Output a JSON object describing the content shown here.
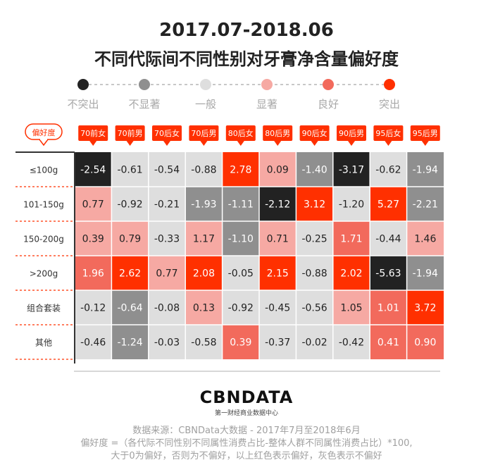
{
  "header": {
    "title_line1": "2017.07-2018.06",
    "title_line2": "不同代际间不同性别对牙膏净含量偏好度"
  },
  "legend": [
    {
      "label": "不突出",
      "color": "#222222"
    },
    {
      "label": "不显著",
      "color": "#8f8f8f"
    },
    {
      "label": "一般",
      "color": "#dedede"
    },
    {
      "label": "显著",
      "color": "#f6a9a3"
    },
    {
      "label": "良好",
      "color": "#f26a5c"
    },
    {
      "label": "突出",
      "color": "#ff3000"
    }
  ],
  "chart_data": {
    "type": "heatmap",
    "corner_label": "偏好度",
    "columns": [
      "70前女",
      "70前男",
      "70后女",
      "70后男",
      "80后女",
      "80后男",
      "90后女",
      "90后男",
      "95后女",
      "95后男"
    ],
    "rows": [
      "≤100g",
      "101-150g",
      "150-200g",
      ">200g",
      "组合套装",
      "其他"
    ],
    "values": [
      [
        -2.54,
        -0.61,
        -0.54,
        -0.88,
        2.78,
        0.09,
        -1.4,
        -3.17,
        -0.62,
        -1.94
      ],
      [
        0.77,
        -0.92,
        -0.21,
        -1.93,
        -1.11,
        -2.12,
        3.12,
        -1.2,
        5.27,
        -2.21
      ],
      [
        0.39,
        0.79,
        -0.33,
        1.17,
        -1.1,
        0.71,
        -0.25,
        1.71,
        -0.44,
        1.46
      ],
      [
        1.96,
        2.62,
        0.77,
        2.08,
        -0.05,
        2.15,
        -0.88,
        2.02,
        -5.63,
        -1.94
      ],
      [
        -0.12,
        -0.64,
        -0.08,
        0.13,
        -0.92,
        -0.45,
        -0.56,
        1.05,
        1.01,
        3.72
      ],
      [
        -0.46,
        -1.24,
        -0.03,
        -0.58,
        0.39,
        -0.37,
        -0.02,
        -0.42,
        0.41,
        0.9
      ]
    ],
    "cell_levels": [
      [
        0,
        2,
        2,
        2,
        5,
        3,
        1,
        0,
        2,
        1
      ],
      [
        3,
        2,
        2,
        1,
        1,
        0,
        5,
        2,
        5,
        1
      ],
      [
        3,
        3,
        2,
        3,
        1,
        3,
        2,
        4,
        2,
        3
      ],
      [
        4,
        5,
        3,
        5,
        2,
        5,
        2,
        5,
        0,
        1
      ],
      [
        2,
        1,
        2,
        3,
        2,
        2,
        2,
        3,
        4,
        5
      ],
      [
        2,
        1,
        2,
        2,
        4,
        2,
        2,
        2,
        4,
        4
      ]
    ]
  },
  "footer": {
    "brand": "CBNDATA",
    "brand_sub": "第一财经商业数据中心",
    "source": "数据来源：CBNData大数据 - 2017年7月至2018年6月",
    "formula": "偏好度 =（各代际不同性别不同属性消费占比-整体人群不同属性消费占比）*100,",
    "note": "大于0为偏好，否则为不偏好，以上红色表示偏好，灰色表示不偏好"
  }
}
